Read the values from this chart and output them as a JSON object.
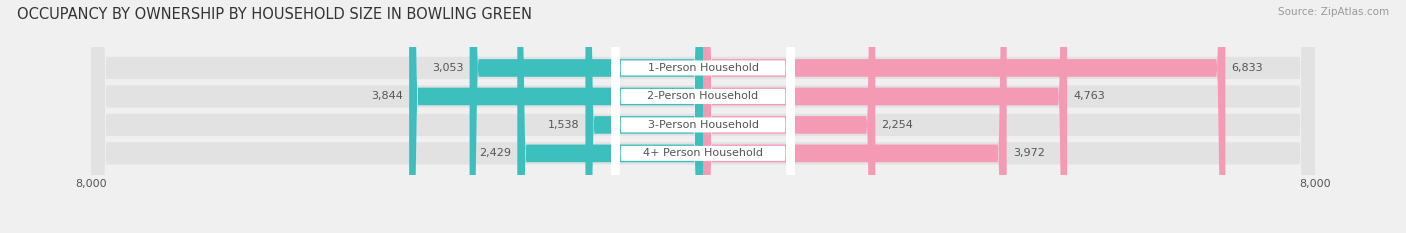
{
  "title": "OCCUPANCY BY OWNERSHIP BY HOUSEHOLD SIZE IN BOWLING GREEN",
  "source": "Source: ZipAtlas.com",
  "categories": [
    "1-Person Household",
    "2-Person Household",
    "3-Person Household",
    "4+ Person Household"
  ],
  "owner_values": [
    3053,
    3844,
    1538,
    2429
  ],
  "renter_values": [
    6833,
    4763,
    2254,
    3972
  ],
  "owner_color": "#3dbfbe",
  "renter_color": "#f59ab5",
  "label_color": "#555555",
  "value_color": "#555555",
  "axis_max": 8000,
  "bg_color": "#f0f0f0",
  "row_bg_color": "#e2e2e2",
  "title_fontsize": 10.5,
  "source_fontsize": 7.5,
  "label_fontsize": 8,
  "value_fontsize": 8,
  "tick_fontsize": 8,
  "legend_fontsize": 8,
  "bar_height": 0.62,
  "figsize": [
    14.06,
    2.33
  ],
  "dpi": 100
}
